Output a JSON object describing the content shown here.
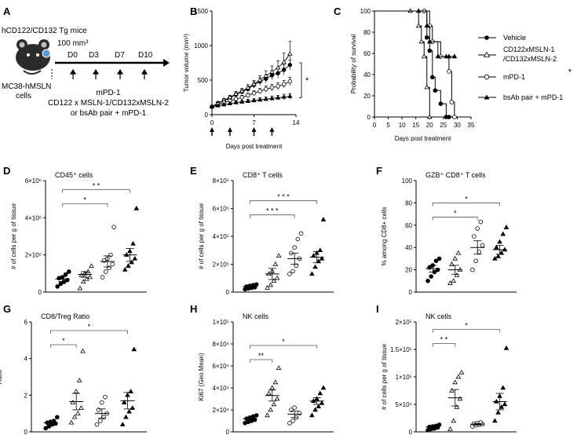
{
  "panel_letters": {
    "A": "A",
    "B": "B",
    "C": "C",
    "D": "D",
    "E": "E",
    "F": "F",
    "G": "G",
    "H": "H",
    "I": "I"
  },
  "schematic": {
    "mouse_label": "hCD122/CD132 Tg mice",
    "tumor_label_1": "MC38-hMSLN",
    "tumor_label_2": "cells",
    "volume_label": "100 mm³",
    "days": [
      "D0",
      "D3",
      "D7",
      "D10"
    ],
    "treatment_line_1": "mPD-1",
    "treatment_line_2": "CD122 x MSLN-1/CD132xMSLN-2",
    "treatment_line_3": "or bsAb pair + mPD-1"
  },
  "legend": {
    "vehicle": "Vehicle",
    "bsab_1": "CD122xMSLN-1",
    "bsab_2": "/CD132xMSLN-2",
    "mpd1": "mPD-1",
    "combo": "bsAb pair + mPD-1"
  },
  "colors": {
    "ink": "#000000",
    "bracket": "#555555",
    "survival_black_curve": "#000000"
  },
  "chart_data": [
    {
      "panel": "B",
      "type": "line",
      "title": "",
      "xlabel": "Days post treatment",
      "ylabel": "Tumor volume (mm³)",
      "xlim": [
        0,
        14
      ],
      "ylim": [
        0,
        1500
      ],
      "xticks": [
        "0",
        "7",
        "14"
      ],
      "yticks": [
        "0",
        "500",
        "1000",
        "1500"
      ],
      "dosing_days": [
        0,
        3,
        7,
        10
      ],
      "significance": "*",
      "series": [
        {
          "name": "Vehicle",
          "marker": "filled-circle",
          "x": [
            0,
            1,
            2,
            3,
            4,
            5,
            6,
            7,
            8,
            9,
            10,
            11,
            12,
            13
          ],
          "y": [
            115,
            170,
            200,
            240,
            290,
            330,
            370,
            430,
            480,
            520,
            570,
            600,
            650,
            720
          ],
          "err": [
            10,
            20,
            25,
            30,
            30,
            35,
            40,
            45,
            55,
            60,
            65,
            70,
            75,
            70
          ]
        },
        {
          "name": "CD122xMSLN-1/CD132xMSLN-2",
          "marker": "open-triangle",
          "x": [
            0,
            1,
            2,
            3,
            4,
            5,
            6,
            7,
            8,
            9,
            10,
            11,
            12,
            13
          ],
          "y": [
            115,
            165,
            210,
            250,
            300,
            340,
            390,
            440,
            500,
            560,
            620,
            680,
            760,
            880
          ],
          "err": [
            10,
            20,
            25,
            30,
            35,
            40,
            45,
            55,
            65,
            75,
            85,
            100,
            130,
            180
          ]
        },
        {
          "name": "mPD-1",
          "marker": "open-circle",
          "x": [
            0,
            1,
            2,
            3,
            4,
            5,
            6,
            7,
            8,
            9,
            10,
            11,
            12,
            13
          ],
          "y": [
            115,
            150,
            175,
            200,
            225,
            250,
            280,
            310,
            340,
            370,
            390,
            410,
            440,
            480
          ],
          "err": [
            10,
            15,
            20,
            25,
            25,
            30,
            30,
            35,
            40,
            45,
            45,
            50,
            55,
            60
          ]
        },
        {
          "name": "bsAb pair + mPD-1",
          "marker": "filled-triangle",
          "x": [
            0,
            1,
            2,
            3,
            4,
            5,
            6,
            7,
            8,
            9,
            10,
            11,
            12,
            13
          ],
          "y": [
            115,
            130,
            145,
            160,
            175,
            185,
            195,
            205,
            215,
            225,
            235,
            245,
            255,
            265
          ],
          "err": [
            10,
            15,
            15,
            20,
            20,
            20,
            25,
            25,
            30,
            30,
            35,
            35,
            40,
            40
          ]
        }
      ]
    },
    {
      "panel": "C",
      "type": "line",
      "title": "",
      "xlabel": "Days post treatment",
      "ylabel": "Probability of survival",
      "xlim": [
        0,
        35
      ],
      "ylim": [
        0,
        100
      ],
      "xticks": [
        "0",
        "5",
        "10",
        "15",
        "20",
        "25",
        "30",
        "35"
      ],
      "yticks": [
        "0",
        "20",
        "40",
        "60",
        "80",
        "100"
      ],
      "legend_position": "right",
      "significance": "*",
      "series": [
        {
          "name": "Vehicle",
          "marker": "filled-circle",
          "x": [
            0,
            18,
            19,
            20,
            21,
            22,
            24,
            26,
            27
          ],
          "y": [
            100,
            100,
            75,
            62.5,
            37.5,
            25,
            12.5,
            0,
            0
          ]
        },
        {
          "name": "CD122xMSLN-1/CD132xMSLN-2",
          "marker": "open-triangle",
          "x": [
            0,
            13,
            16,
            17,
            18,
            19,
            20
          ],
          "y": [
            100,
            100,
            86,
            71,
            57,
            28,
            0
          ]
        },
        {
          "name": "mPD-1",
          "marker": "open-circle",
          "x": [
            0,
            18,
            20,
            21,
            24,
            27,
            28,
            29
          ],
          "y": [
            100,
            100,
            86,
            71,
            57,
            43,
            14,
            0
          ]
        },
        {
          "name": "bsAb pair + mPD-1",
          "marker": "filled-triangle",
          "x": [
            0,
            16,
            19,
            20,
            23,
            26,
            27,
            29
          ],
          "y": [
            100,
            100,
            86,
            71,
            57,
            57,
            57,
            57
          ]
        }
      ]
    },
    {
      "panel": "D",
      "type": "scatter",
      "title": "CD45⁺ cells",
      "xlabel": "",
      "ylabel": "# of cells per g of tissue",
      "ylim": [
        0,
        6000000
      ],
      "yticks": [
        "0",
        "2×10⁶",
        "4×10⁶",
        "6×10⁶"
      ],
      "groups": [
        {
          "name": "Vehicle",
          "marker": "filled-circle",
          "values": [
            300000,
            450000,
            550000,
            650000,
            750000,
            800000,
            950000,
            1100000
          ],
          "mean": 700000,
          "sem": 130000
        },
        {
          "name": "CD122xMSLN-1/CD132xMSLN-2",
          "marker": "open-triangle",
          "values": [
            200000,
            550000,
            700000,
            800000,
            900000,
            1000000,
            1100000,
            1400000
          ],
          "mean": 950000,
          "sem": 150000
        },
        {
          "name": "mPD-1",
          "marker": "open-circle",
          "values": [
            800000,
            1100000,
            1300000,
            1500000,
            1700000,
            1800000,
            2000000,
            3500000
          ],
          "mean": 1650000,
          "sem": 300000
        },
        {
          "name": "bsAb pair + mPD-1",
          "marker": "filled-triangle",
          "values": [
            1200000,
            1400000,
            1600000,
            1800000,
            2000000,
            2200000,
            2600000,
            4500000
          ],
          "mean": 2000000,
          "sem": 350000
        }
      ],
      "brackets": [
        {
          "from": 0,
          "to": 2,
          "label": "*"
        },
        {
          "from": 0,
          "to": 3,
          "label": "* *"
        }
      ]
    },
    {
      "panel": "E",
      "type": "scatter",
      "title": "CD8⁺ T cells",
      "xlabel": "",
      "ylabel": "# of cells per g of tissue",
      "ylim": [
        0,
        800000
      ],
      "yticks": [
        "0",
        "2×10⁵",
        "4×10⁵",
        "6×10⁵",
        "8×10⁵"
      ],
      "groups": [
        {
          "name": "Vehicle",
          "marker": "filled-circle",
          "values": [
            20000,
            25000,
            30000,
            35000,
            40000,
            45000,
            50000,
            55000
          ],
          "mean": 40000,
          "sem": 8000
        },
        {
          "name": "CD122xMSLN-1/CD132xMSLN-2",
          "marker": "open-triangle",
          "values": [
            30000,
            50000,
            80000,
            100000,
            130000,
            150000,
            200000,
            260000
          ],
          "mean": 130000,
          "sem": 40000
        },
        {
          "name": "mPD-1",
          "marker": "open-circle",
          "values": [
            130000,
            150000,
            190000,
            240000,
            280000,
            320000,
            380000,
            420000
          ],
          "mean": 240000,
          "sem": 40000
        },
        {
          "name": "bsAb pair + mPD-1",
          "marker": "filled-triangle",
          "values": [
            130000,
            180000,
            220000,
            240000,
            260000,
            280000,
            300000,
            520000
          ],
          "mean": 250000,
          "sem": 40000
        }
      ],
      "brackets": [
        {
          "from": 0,
          "to": 2,
          "label": "* * *"
        },
        {
          "from": 0,
          "to": 3,
          "label": "* * *"
        }
      ]
    },
    {
      "panel": "F",
      "type": "scatter",
      "title": "GZB⁺ CD8⁺ T cells",
      "xlabel": "",
      "ylabel": "% among CD8+ cells",
      "ylim": [
        0,
        100
      ],
      "yticks": [
        "0",
        "20",
        "40",
        "60",
        "80",
        "100"
      ],
      "groups": [
        {
          "name": "Vehicle",
          "marker": "filled-circle",
          "values": [
            10,
            14,
            18,
            20,
            22,
            24,
            28,
            30
          ],
          "mean": 21,
          "sem": 3
        },
        {
          "name": "CD122xMSLN-1/CD132xMSLN-2",
          "marker": "open-triangle",
          "values": [
            8,
            10,
            15,
            20,
            25,
            30,
            35
          ],
          "mean": 20,
          "sem": 4
        },
        {
          "name": "mPD-1",
          "marker": "open-circle",
          "values": [
            20,
            28,
            36,
            42,
            50,
            57,
            63
          ],
          "mean": 40,
          "sem": 6
        },
        {
          "name": "bsAb pair + mPD-1",
          "marker": "filled-triangle",
          "values": [
            30,
            32,
            35,
            38,
            40,
            45,
            52,
            58
          ],
          "mean": 38,
          "sem": 4
        }
      ],
      "brackets": [
        {
          "from": 0,
          "to": 2,
          "label": "*"
        },
        {
          "from": 0,
          "to": 3,
          "label": "*"
        }
      ]
    },
    {
      "panel": "G",
      "type": "scatter",
      "title": "CD8/Treg Ratio",
      "xlabel": "",
      "ylabel": "Ratio",
      "ylim": [
        0,
        6
      ],
      "yticks": [
        "0",
        "2",
        "4",
        "6"
      ],
      "groups": [
        {
          "name": "Vehicle",
          "marker": "filled-circle",
          "values": [
            0.2,
            0.3,
            0.4,
            0.45,
            0.5,
            0.55,
            0.6,
            0.8
          ],
          "mean": 0.5,
          "sem": 0.08
        },
        {
          "name": "CD122xMSLN-1/CD132xMSLN-2",
          "marker": "open-triangle",
          "values": [
            0.5,
            0.8,
            1.0,
            1.3,
            1.6,
            2.2,
            2.8,
            4.4
          ],
          "mean": 1.65,
          "sem": 0.45
        },
        {
          "name": "mPD-1",
          "marker": "open-circle",
          "values": [
            0.4,
            0.6,
            0.8,
            1.0,
            1.2,
            1.6,
            1.9
          ],
          "mean": 1.0,
          "sem": 0.25
        },
        {
          "name": "bsAb pair + mPD-1",
          "marker": "filled-triangle",
          "values": [
            0.4,
            0.8,
            1.1,
            1.3,
            1.6,
            2.0,
            2.2,
            4.5
          ],
          "mean": 1.7,
          "sem": 0.45
        }
      ],
      "brackets": [
        {
          "from": 0,
          "to": 1,
          "label": "*"
        },
        {
          "from": 0,
          "to": 3,
          "label": "*"
        }
      ]
    },
    {
      "panel": "H",
      "type": "scatter",
      "title": "NK cells",
      "xlabel": "",
      "ylabel": "Ki67 (Geo Mean)",
      "ylim": [
        0,
        100000
      ],
      "yticks": [
        "0",
        "2×10⁴",
        "4×10⁴",
        "6×10⁴",
        "8×10⁴",
        "1×10⁵"
      ],
      "groups": [
        {
          "name": "Vehicle",
          "marker": "filled-circle",
          "values": [
            8000,
            9000,
            10000,
            11000,
            12000,
            13000,
            14000,
            15000
          ],
          "mean": 12000,
          "sem": 1000
        },
        {
          "name": "CD122xMSLN-1/CD132xMSLN-2",
          "marker": "open-triangle",
          "values": [
            15000,
            20000,
            25000,
            30000,
            35000,
            40000,
            45000,
            58000
          ],
          "mean": 33000,
          "sem": 5000
        },
        {
          "name": "mPD-1",
          "marker": "open-circle",
          "values": [
            8000,
            10000,
            13000,
            17000,
            20000,
            22000
          ],
          "mean": 16000,
          "sem": 3000
        },
        {
          "name": "bsAb pair + mPD-1",
          "marker": "filled-triangle",
          "values": [
            15000,
            20000,
            23000,
            26000,
            28000,
            30000,
            35000,
            40000
          ],
          "mean": 28000,
          "sem": 3000
        }
      ],
      "brackets": [
        {
          "from": 0,
          "to": 1,
          "label": "**"
        },
        {
          "from": 0,
          "to": 3,
          "label": "*"
        }
      ]
    },
    {
      "panel": "I",
      "type": "scatter",
      "title": "NK cells",
      "xlabel": "",
      "ylabel": "# of cells per g of tissue",
      "ylim": [
        0,
        200000
      ],
      "yticks": [
        "0",
        "5×10⁴",
        "1×10⁵",
        "1.5×10⁵",
        "2×10⁵"
      ],
      "groups": [
        {
          "name": "Vehicle",
          "marker": "filled-circle",
          "values": [
            3000,
            5000,
            6000,
            8000,
            9000,
            10000,
            11000,
            13000
          ],
          "mean": 9000,
          "sem": 2000
        },
        {
          "name": "CD122xMSLN-1/CD132xMSLN-2",
          "marker": "open-triangle",
          "values": [
            5000,
            20000,
            45000,
            60000,
            75000,
            90000,
            100000,
            108000
          ],
          "mean": 62000,
          "sem": 15000
        },
        {
          "name": "mPD-1",
          "marker": "open-circle",
          "values": [
            10000,
            12000,
            13000,
            14000,
            15000,
            16000,
            17000
          ],
          "mean": 14000,
          "sem": 1500
        },
        {
          "name": "bsAb pair + mPD-1",
          "marker": "filled-triangle",
          "values": [
            20000,
            35000,
            45000,
            50000,
            55000,
            65000,
            80000,
            152000
          ],
          "mean": 55000,
          "sem": 15000
        }
      ],
      "brackets": [
        {
          "from": 0,
          "to": 1,
          "label": "* *"
        },
        {
          "from": 0,
          "to": 3,
          "label": "*"
        }
      ]
    }
  ]
}
